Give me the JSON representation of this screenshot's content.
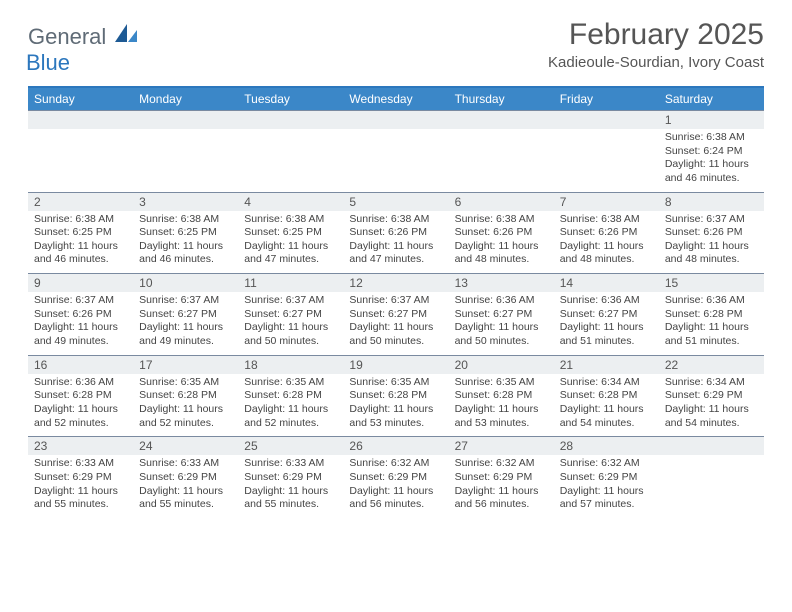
{
  "logo": {
    "text1": "General",
    "text2": "Blue",
    "colors": {
      "general": "#5f6b76",
      "blue": "#2c77bd",
      "icon_dark": "#1e5a94",
      "icon_light": "#3b87c8"
    }
  },
  "title": "February 2025",
  "location": "Kadieoule-Sourdian, Ivory Coast",
  "header_bar_color": "#3b87c8",
  "border_color": "#7a8aa0",
  "daynum_bg": "#eceff1",
  "weekdays": [
    "Sunday",
    "Monday",
    "Tuesday",
    "Wednesday",
    "Thursday",
    "Friday",
    "Saturday"
  ],
  "weeks": [
    [
      {
        "day": "",
        "sunrise": "",
        "sunset": "",
        "daylight": ""
      },
      {
        "day": "",
        "sunrise": "",
        "sunset": "",
        "daylight": ""
      },
      {
        "day": "",
        "sunrise": "",
        "sunset": "",
        "daylight": ""
      },
      {
        "day": "",
        "sunrise": "",
        "sunset": "",
        "daylight": ""
      },
      {
        "day": "",
        "sunrise": "",
        "sunset": "",
        "daylight": ""
      },
      {
        "day": "",
        "sunrise": "",
        "sunset": "",
        "daylight": ""
      },
      {
        "day": "1",
        "sunrise": "Sunrise: 6:38 AM",
        "sunset": "Sunset: 6:24 PM",
        "daylight": "Daylight: 11 hours and 46 minutes."
      }
    ],
    [
      {
        "day": "2",
        "sunrise": "Sunrise: 6:38 AM",
        "sunset": "Sunset: 6:25 PM",
        "daylight": "Daylight: 11 hours and 46 minutes."
      },
      {
        "day": "3",
        "sunrise": "Sunrise: 6:38 AM",
        "sunset": "Sunset: 6:25 PM",
        "daylight": "Daylight: 11 hours and 46 minutes."
      },
      {
        "day": "4",
        "sunrise": "Sunrise: 6:38 AM",
        "sunset": "Sunset: 6:25 PM",
        "daylight": "Daylight: 11 hours and 47 minutes."
      },
      {
        "day": "5",
        "sunrise": "Sunrise: 6:38 AM",
        "sunset": "Sunset: 6:26 PM",
        "daylight": "Daylight: 11 hours and 47 minutes."
      },
      {
        "day": "6",
        "sunrise": "Sunrise: 6:38 AM",
        "sunset": "Sunset: 6:26 PM",
        "daylight": "Daylight: 11 hours and 48 minutes."
      },
      {
        "day": "7",
        "sunrise": "Sunrise: 6:38 AM",
        "sunset": "Sunset: 6:26 PM",
        "daylight": "Daylight: 11 hours and 48 minutes."
      },
      {
        "day": "8",
        "sunrise": "Sunrise: 6:37 AM",
        "sunset": "Sunset: 6:26 PM",
        "daylight": "Daylight: 11 hours and 48 minutes."
      }
    ],
    [
      {
        "day": "9",
        "sunrise": "Sunrise: 6:37 AM",
        "sunset": "Sunset: 6:26 PM",
        "daylight": "Daylight: 11 hours and 49 minutes."
      },
      {
        "day": "10",
        "sunrise": "Sunrise: 6:37 AM",
        "sunset": "Sunset: 6:27 PM",
        "daylight": "Daylight: 11 hours and 49 minutes."
      },
      {
        "day": "11",
        "sunrise": "Sunrise: 6:37 AM",
        "sunset": "Sunset: 6:27 PM",
        "daylight": "Daylight: 11 hours and 50 minutes."
      },
      {
        "day": "12",
        "sunrise": "Sunrise: 6:37 AM",
        "sunset": "Sunset: 6:27 PM",
        "daylight": "Daylight: 11 hours and 50 minutes."
      },
      {
        "day": "13",
        "sunrise": "Sunrise: 6:36 AM",
        "sunset": "Sunset: 6:27 PM",
        "daylight": "Daylight: 11 hours and 50 minutes."
      },
      {
        "day": "14",
        "sunrise": "Sunrise: 6:36 AM",
        "sunset": "Sunset: 6:27 PM",
        "daylight": "Daylight: 11 hours and 51 minutes."
      },
      {
        "day": "15",
        "sunrise": "Sunrise: 6:36 AM",
        "sunset": "Sunset: 6:28 PM",
        "daylight": "Daylight: 11 hours and 51 minutes."
      }
    ],
    [
      {
        "day": "16",
        "sunrise": "Sunrise: 6:36 AM",
        "sunset": "Sunset: 6:28 PM",
        "daylight": "Daylight: 11 hours and 52 minutes."
      },
      {
        "day": "17",
        "sunrise": "Sunrise: 6:35 AM",
        "sunset": "Sunset: 6:28 PM",
        "daylight": "Daylight: 11 hours and 52 minutes."
      },
      {
        "day": "18",
        "sunrise": "Sunrise: 6:35 AM",
        "sunset": "Sunset: 6:28 PM",
        "daylight": "Daylight: 11 hours and 52 minutes."
      },
      {
        "day": "19",
        "sunrise": "Sunrise: 6:35 AM",
        "sunset": "Sunset: 6:28 PM",
        "daylight": "Daylight: 11 hours and 53 minutes."
      },
      {
        "day": "20",
        "sunrise": "Sunrise: 6:35 AM",
        "sunset": "Sunset: 6:28 PM",
        "daylight": "Daylight: 11 hours and 53 minutes."
      },
      {
        "day": "21",
        "sunrise": "Sunrise: 6:34 AM",
        "sunset": "Sunset: 6:28 PM",
        "daylight": "Daylight: 11 hours and 54 minutes."
      },
      {
        "day": "22",
        "sunrise": "Sunrise: 6:34 AM",
        "sunset": "Sunset: 6:29 PM",
        "daylight": "Daylight: 11 hours and 54 minutes."
      }
    ],
    [
      {
        "day": "23",
        "sunrise": "Sunrise: 6:33 AM",
        "sunset": "Sunset: 6:29 PM",
        "daylight": "Daylight: 11 hours and 55 minutes."
      },
      {
        "day": "24",
        "sunrise": "Sunrise: 6:33 AM",
        "sunset": "Sunset: 6:29 PM",
        "daylight": "Daylight: 11 hours and 55 minutes."
      },
      {
        "day": "25",
        "sunrise": "Sunrise: 6:33 AM",
        "sunset": "Sunset: 6:29 PM",
        "daylight": "Daylight: 11 hours and 55 minutes."
      },
      {
        "day": "26",
        "sunrise": "Sunrise: 6:32 AM",
        "sunset": "Sunset: 6:29 PM",
        "daylight": "Daylight: 11 hours and 56 minutes."
      },
      {
        "day": "27",
        "sunrise": "Sunrise: 6:32 AM",
        "sunset": "Sunset: 6:29 PM",
        "daylight": "Daylight: 11 hours and 56 minutes."
      },
      {
        "day": "28",
        "sunrise": "Sunrise: 6:32 AM",
        "sunset": "Sunset: 6:29 PM",
        "daylight": "Daylight: 11 hours and 57 minutes."
      },
      {
        "day": "",
        "sunrise": "",
        "sunset": "",
        "daylight": ""
      }
    ]
  ]
}
